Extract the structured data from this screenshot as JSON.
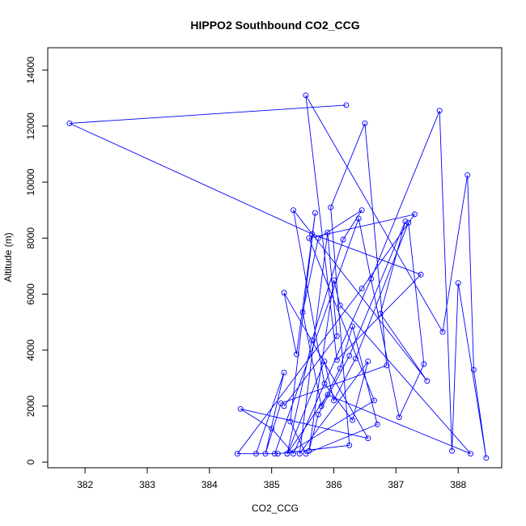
{
  "chart_data": {
    "type": "line",
    "title": "HIPPO2 Southbound CO2_CCG",
    "xlabel": "CO2_CCG",
    "ylabel": "Altitude (m)",
    "xlim": [
      381.4,
      388.7
    ],
    "ylim": [
      -200,
      14800
    ],
    "grid": false,
    "markers": "open-circle",
    "line_color": "#0000ff",
    "x_ticks": [
      382,
      383,
      384,
      385,
      386,
      387,
      388
    ],
    "y_ticks": [
      0,
      2000,
      4000,
      6000,
      8000,
      10000,
      12000,
      14000
    ],
    "x": [
      386.2,
      381.75,
      385.65,
      387.4,
      386.05,
      385.55,
      387.75,
      388.15,
      388.25,
      388.45,
      388.0,
      387.9,
      387.7,
      386.6,
      385.35,
      385.0,
      384.5,
      386.55,
      385.2,
      385.4,
      385.7,
      385.3,
      385.55,
      386.7,
      386.3,
      386.1,
      385.8,
      385.5,
      385.75,
      386.45,
      386.15,
      385.65,
      385.25,
      385.85,
      386.0,
      386.35,
      387.2,
      387.45,
      387.05,
      386.4,
      385.05,
      384.75,
      385.2,
      384.9,
      385.15,
      386.85,
      386.5,
      385.95,
      386.25,
      385.1,
      384.45,
      386.45,
      387.3,
      385.6,
      386.65,
      385.25,
      385.9,
      388.2,
      386.1,
      386.0,
      385.6,
      385.75,
      386.25,
      387.15,
      386.75,
      387.5,
      385.35,
      385.85,
      386.3,
      386.55,
      385.45,
      385.9,
      386.05,
      385.2
    ],
    "y": [
      12750,
      12100,
      8150,
      6700,
      3650,
      13100,
      4650,
      10250,
      3300,
      150,
      6400,
      400,
      12550,
      6550,
      300,
      1200,
      1900,
      850,
      6050,
      3850,
      8900,
      1450,
      300,
      1350,
      4850,
      3350,
      2000,
      5350,
      8000,
      9000,
      7950,
      4350,
      300,
      3600,
      2200,
      3700,
      8550,
      3500,
      1600,
      8700,
      300,
      300,
      3200,
      300,
      2100,
      3450,
      12100,
      9100,
      600,
      300,
      300,
      6200,
      8850,
      8000,
      2200,
      300,
      2400,
      300,
      5600,
      6500,
      400,
      1700,
      3800,
      8600,
      5300,
      2900,
      9000,
      2800,
      1500,
      3600,
      300,
      8200,
      4500,
      2000
    ]
  }
}
